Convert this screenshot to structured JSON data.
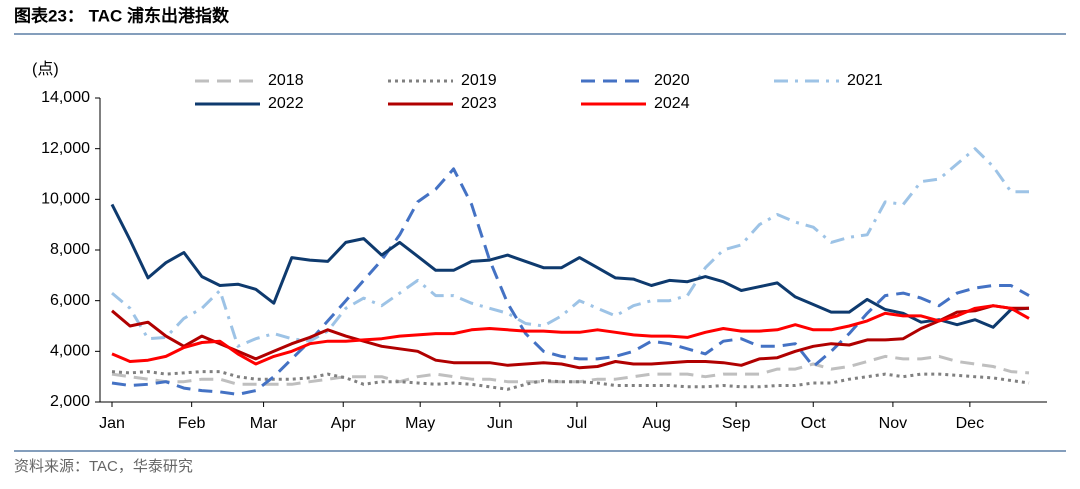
{
  "header": {
    "title": "图表23： TAC 浦东出港指数"
  },
  "chart_data": {
    "type": "line",
    "y_label": "(点)",
    "x": [
      0,
      1,
      2,
      3,
      4,
      5,
      6,
      7,
      8,
      9,
      10,
      11,
      12,
      13,
      14,
      15,
      16,
      17,
      18,
      19,
      20,
      21,
      22,
      23,
      24,
      25,
      26,
      27,
      28,
      29,
      30,
      31,
      32,
      33,
      34,
      35,
      36,
      37,
      38,
      39,
      40,
      41,
      42,
      43,
      44,
      45,
      46,
      47,
      48,
      49,
      50,
      51
    ],
    "xlim": [
      0,
      52
    ],
    "xticks": [
      {
        "value": 0,
        "label": "Jan"
      },
      {
        "value": 4.43,
        "label": "Feb"
      },
      {
        "value": 8.43,
        "label": "Mar"
      },
      {
        "value": 12.86,
        "label": "Apr"
      },
      {
        "value": 17.14,
        "label": "May"
      },
      {
        "value": 21.57,
        "label": "Jun"
      },
      {
        "value": 25.86,
        "label": "Jul"
      },
      {
        "value": 30.29,
        "label": "Aug"
      },
      {
        "value": 34.71,
        "label": "Sep"
      },
      {
        "value": 39,
        "label": "Oct"
      },
      {
        "value": 43.43,
        "label": "Nov"
      },
      {
        "value": 47.71,
        "label": "Dec"
      }
    ],
    "ylim": [
      2000,
      14000
    ],
    "yticks": [
      {
        "value": 2000,
        "label": "2,000"
      },
      {
        "value": 4000,
        "label": "4,000"
      },
      {
        "value": 6000,
        "label": "6,000"
      },
      {
        "value": 8000,
        "label": "8,000"
      },
      {
        "value": 10000,
        "label": "10,000"
      },
      {
        "value": 12000,
        "label": "12,000"
      },
      {
        "value": 14000,
        "label": "14,000"
      }
    ],
    "series": [
      {
        "name": "2018",
        "color": "#bfbfbf",
        "dash": "dash",
        "values": [
          3100,
          3000,
          2900,
          2800,
          2800,
          2900,
          2900,
          2700,
          2700,
          2700,
          2700,
          2800,
          2900,
          3000,
          3000,
          3000,
          2800,
          3000,
          3100,
          3000,
          2900,
          2900,
          2800,
          2800,
          2800,
          2800,
          2800,
          2900,
          2900,
          3000,
          3100,
          3100,
          3100,
          3000,
          3100,
          3100,
          3100,
          3300,
          3300,
          3500,
          3300,
          3400,
          3600,
          3800,
          3700,
          3700,
          3800,
          3600,
          3500,
          3400,
          3200,
          3150
        ]
      },
      {
        "name": "2019",
        "color": "#808080",
        "dash": "dot",
        "values": [
          3200,
          3150,
          3200,
          3100,
          3150,
          3200,
          3200,
          3000,
          2900,
          2900,
          2900,
          2950,
          3100,
          2950,
          2700,
          2800,
          2800,
          2750,
          2700,
          2750,
          2700,
          2600,
          2500,
          2700,
          2850,
          2800,
          2800,
          2750,
          2650,
          2650,
          2650,
          2650,
          2600,
          2600,
          2650,
          2600,
          2600,
          2650,
          2650,
          2750,
          2750,
          2900,
          3000,
          3100,
          3000,
          3100,
          3100,
          3050,
          3000,
          2950,
          2850,
          2750
        ]
      },
      {
        "name": "2020",
        "color": "#4472c4",
        "dash": "dash",
        "values": [
          2750,
          2650,
          2700,
          2800,
          2550,
          2450,
          2400,
          2300,
          2450,
          3000,
          3700,
          4400,
          5200,
          6000,
          6800,
          7600,
          8600,
          9900,
          10400,
          11200,
          9800,
          7600,
          5900,
          4700,
          4000,
          3800,
          3700,
          3700,
          3800,
          4000,
          4400,
          4300,
          4100,
          3900,
          4400,
          4500,
          4200,
          4200,
          4300,
          3400,
          4000,
          4700,
          5500,
          6200,
          6300,
          6100,
          5800,
          6300,
          6500,
          6600,
          6600,
          6200
        ]
      },
      {
        "name": "2021",
        "color": "#9dc3e6",
        "dash": "dashdot",
        "values": [
          6300,
          5700,
          4500,
          4550,
          5300,
          5700,
          6400,
          4200,
          4500,
          4700,
          4500,
          4400,
          4800,
          5700,
          6100,
          5800,
          6300,
          6800,
          6200,
          6200,
          5900,
          5700,
          5500,
          5100,
          5000,
          5400,
          6000,
          5700,
          5400,
          5800,
          6000,
          6000,
          6200,
          7300,
          8000,
          8200,
          9000,
          9400,
          9100,
          8900,
          8300,
          8500,
          8600,
          9900,
          9800,
          10700,
          10800,
          11400,
          12000,
          11300,
          10300,
          10300
        ]
      },
      {
        "name": "2022",
        "color": "#0e3a6e",
        "dash": "solid",
        "values": [
          9800,
          8400,
          6900,
          7500,
          7900,
          6950,
          6600,
          6650,
          6450,
          5900,
          7700,
          7600,
          7550,
          8300,
          8450,
          7800,
          8300,
          7750,
          7200,
          7200,
          7550,
          7600,
          7800,
          7550,
          7300,
          7300,
          7700,
          7300,
          6900,
          6850,
          6600,
          6800,
          6750,
          6950,
          6750,
          6400,
          6550,
          6700,
          6150,
          5850,
          5550,
          5550,
          6050,
          5650,
          5500,
          5150,
          5250,
          5050,
          5250,
          4950,
          5650,
          5700
        ]
      },
      {
        "name": "2023",
        "color": "#b00000",
        "dash": "solid",
        "values": [
          5600,
          5000,
          5150,
          4600,
          4200,
          4600,
          4300,
          4000,
          3700,
          4000,
          4300,
          4550,
          4850,
          4600,
          4400,
          4200,
          4100,
          4000,
          3650,
          3550,
          3550,
          3550,
          3450,
          3500,
          3550,
          3500,
          3350,
          3400,
          3600,
          3500,
          3500,
          3550,
          3600,
          3600,
          3550,
          3450,
          3700,
          3750,
          4000,
          4200,
          4300,
          4250,
          4450,
          4450,
          4500,
          4900,
          5200,
          5550,
          5600,
          5800,
          5700,
          5700
        ]
      },
      {
        "name": "2024",
        "color": "#ff0000",
        "dash": "solid",
        "values": [
          3900,
          3600,
          3650,
          3800,
          4150,
          4350,
          4400,
          3900,
          3500,
          3800,
          4000,
          4300,
          4400,
          4400,
          4450,
          4500,
          4600,
          4650,
          4700,
          4700,
          4850,
          4900,
          4850,
          4800,
          4800,
          4750,
          4750,
          4850,
          4750,
          4650,
          4600,
          4600,
          4550,
          4750,
          4900,
          4800,
          4800,
          4850,
          5050,
          4850,
          4850,
          5000,
          5200,
          5500,
          5400,
          5400,
          5200,
          5400,
          5700,
          5800,
          5700,
          5300
        ]
      }
    ]
  },
  "footer": {
    "source": "资料来源：TAC，华泰研究"
  }
}
